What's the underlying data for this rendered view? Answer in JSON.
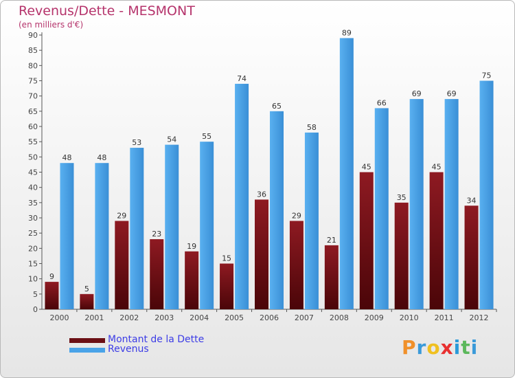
{
  "colors": {
    "dette": "#6b0f14",
    "revenus": "#4aa3e8",
    "title": "#b5336b",
    "legend_text": "#3c3ce6",
    "axis_text": "#444444"
  },
  "legend": {
    "dette_label": "Montant de la Dette",
    "revenus_label": "Revenus"
  },
  "logo": {
    "text": "Proxiti",
    "letters": [
      "P",
      "r",
      "o",
      "x",
      "i",
      "t",
      "i"
    ],
    "letter_colors": [
      "#f0902a",
      "#3a9ad9",
      "#f0c020",
      "#e83030",
      "#2a9ad9",
      "#5cb85c",
      "#3a9ad9"
    ]
  },
  "chart_data": {
    "type": "bar",
    "title": "Revenus/Dette - MESMONT",
    "subtitle": "(en milliers d'€)",
    "categories": [
      "2000",
      "2001",
      "2002",
      "2003",
      "2004",
      "2005",
      "2006",
      "2007",
      "2008",
      "2009",
      "2010",
      "2011",
      "2012"
    ],
    "series": [
      {
        "name": "Montant de la Dette",
        "values": [
          9,
          5,
          29,
          23,
          19,
          15,
          36,
          29,
          21,
          45,
          35,
          45,
          34
        ]
      },
      {
        "name": "Revenus",
        "values": [
          48,
          48,
          53,
          54,
          55,
          74,
          65,
          58,
          89,
          66,
          69,
          69,
          75
        ]
      }
    ],
    "ylim": [
      0,
      90
    ],
    "yticks": [
      0,
      5,
      10,
      15,
      20,
      25,
      30,
      35,
      40,
      45,
      50,
      55,
      60,
      65,
      70,
      75,
      80,
      85,
      90
    ],
    "grid": false,
    "legend_position": "bottom-left"
  }
}
